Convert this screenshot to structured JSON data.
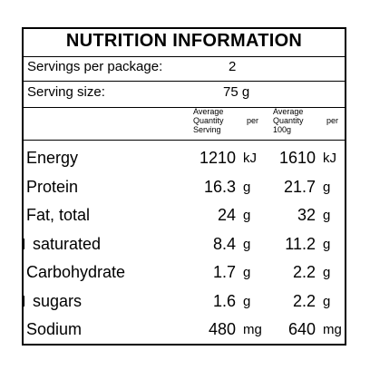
{
  "panel": {
    "title": "NUTRITION INFORMATION",
    "servings_label": "Servings per package:",
    "servings_value": "2",
    "serving_size_label": "Serving size:",
    "serving_size_value": "75 g",
    "col_headers": {
      "per_serving": [
        "Average",
        "Quantity",
        "per",
        "Serving"
      ],
      "per_100g": [
        "Average",
        "Quantity",
        "per",
        "100g"
      ]
    },
    "rows": [
      {
        "label": "Energy",
        "serving": "1210",
        "serving_unit": "kJ",
        "per100": "1610",
        "per100_unit": "kJ",
        "sub": false
      },
      {
        "label": "Protein",
        "serving": "16.3",
        "serving_unit": "g",
        "per100": "21.7",
        "per100_unit": "g",
        "sub": false
      },
      {
        "label": "Fat, total",
        "serving": "24",
        "serving_unit": "g",
        "per100": "32",
        "per100_unit": "g",
        "sub": false
      },
      {
        "label": "saturated",
        "serving": "8.4",
        "serving_unit": "g",
        "per100": "11.2",
        "per100_unit": "g",
        "sub": true
      },
      {
        "label": "Carbohydrate",
        "serving": "1.7",
        "serving_unit": "g",
        "per100": "2.2",
        "per100_unit": "g",
        "sub": false
      },
      {
        "label": "sugars",
        "serving": "1.6",
        "serving_unit": "g",
        "per100": "2.2",
        "per100_unit": "g",
        "sub": true
      },
      {
        "label": "Sodium",
        "serving": "480",
        "serving_unit": "mg",
        "per100": "640",
        "per100_unit": "mg",
        "sub": false
      }
    ]
  }
}
